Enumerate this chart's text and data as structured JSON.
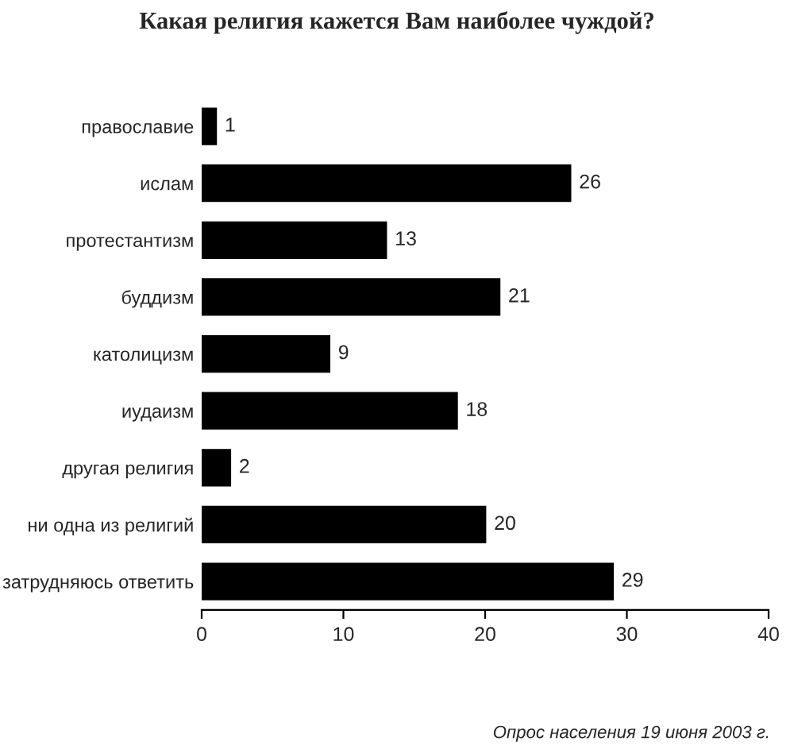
{
  "chart_data": {
    "type": "bar",
    "orientation": "horizontal",
    "title": "Какая религия кажется Вам наиболее чуждой?",
    "categories": [
      "православие",
      "ислам",
      "протестантизм",
      "буддизм",
      "католицизм",
      "иудаизм",
      "другая религия",
      "ни одна из религий",
      "затрудняюсь ответить"
    ],
    "values": [
      1,
      26,
      13,
      21,
      9,
      18,
      2,
      20,
      29
    ],
    "color": "#000000",
    "xlim": [
      0,
      40
    ],
    "xticks": [
      0,
      10,
      20,
      30,
      40
    ],
    "data_labels": true,
    "grid": false,
    "legend": false,
    "annotations": [
      "Опрос населения 19 июня 2003 г."
    ]
  }
}
